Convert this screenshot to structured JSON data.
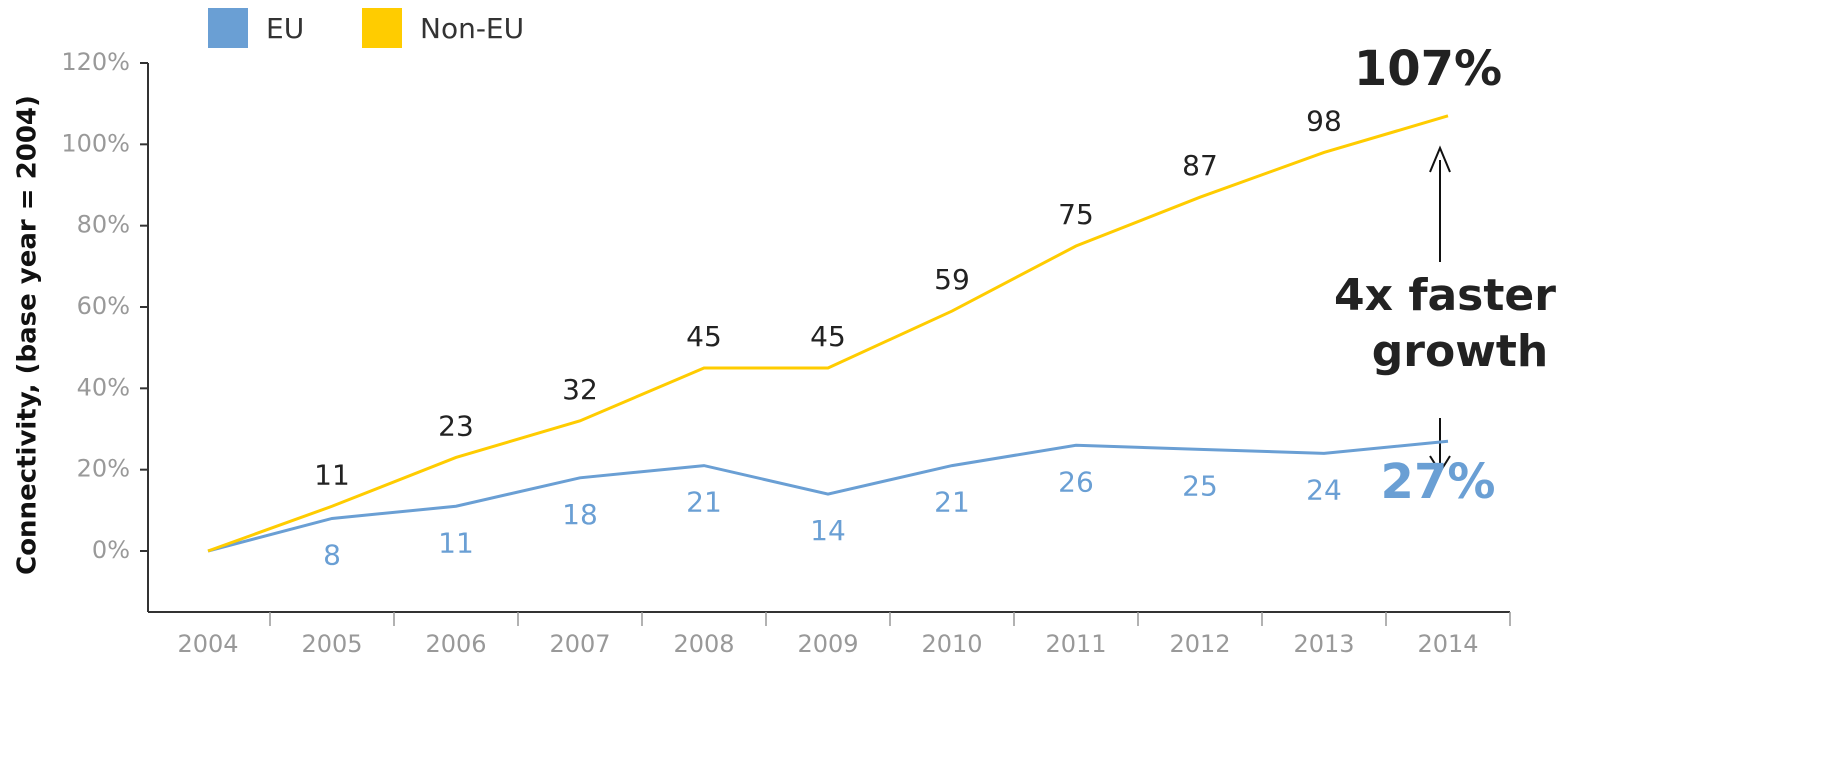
{
  "chart_data": {
    "type": "line",
    "y_axis_label": "Connectivity, (base year = 2004)",
    "categories": [
      "2004",
      "2005",
      "2006",
      "2007",
      "2008",
      "2009",
      "2010",
      "2011",
      "2012",
      "2013",
      "2014"
    ],
    "series": [
      {
        "name": "EU",
        "color": "#6a9fd4",
        "values": [
          0,
          8,
          11,
          18,
          21,
          14,
          21,
          26,
          25,
          24,
          27
        ],
        "value_labels": [
          null,
          "8",
          "11",
          "18",
          "21",
          "14",
          "21",
          "26",
          "25",
          "24",
          "27%"
        ]
      },
      {
        "name": "Non-EU",
        "color": "#ffcc00",
        "values": [
          0,
          11,
          23,
          32,
          45,
          45,
          59,
          75,
          87,
          98,
          107
        ],
        "value_labels": [
          null,
          "11",
          "23",
          "32",
          "45",
          "45",
          "59",
          "75",
          "87",
          "98",
          "107%"
        ]
      }
    ],
    "ylim": [
      -15,
      120
    ],
    "yticks": [
      {
        "value": 0,
        "label": "0%"
      },
      {
        "value": 20,
        "label": "20%"
      },
      {
        "value": 40,
        "label": "40%"
      },
      {
        "value": 60,
        "label": "60%"
      },
      {
        "value": 80,
        "label": "80%"
      },
      {
        "value": 100,
        "label": "100%"
      },
      {
        "value": 120,
        "label": "120%"
      }
    ],
    "annotation": [
      "4x faster",
      "growth"
    ]
  }
}
